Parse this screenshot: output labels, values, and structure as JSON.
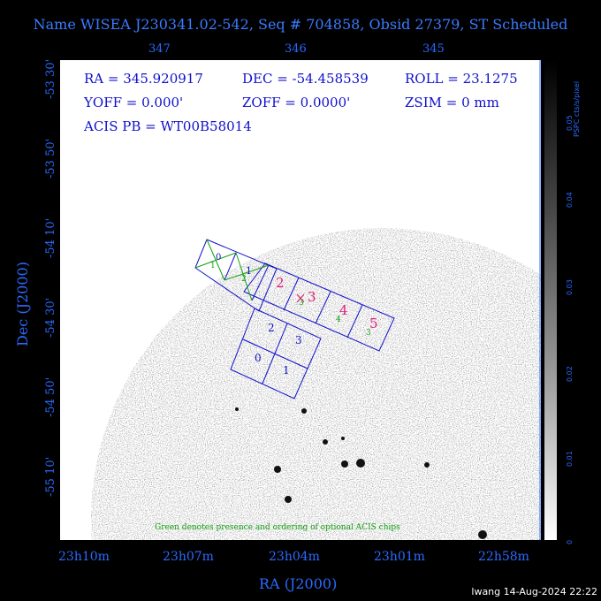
{
  "title": "Name WISEA J230341.02-542, Seq # 704858, Obsid 27379, ST Scheduled",
  "top_ticks": [
    "347",
    "346",
    "345"
  ],
  "bottom_ticks": [
    "23h10m",
    "23h07m",
    "23h04m",
    "23h01m",
    "22h58m"
  ],
  "left_ticks": [
    "-53 30'",
    "-53 50'",
    "-54 10'",
    "-54 30'",
    "-54 50'",
    "-55 10'"
  ],
  "xlabel": "RA (J2000)",
  "ylabel": "Dec (J2000)",
  "info": {
    "ra": "RA = 345.920917",
    "dec": "DEC = -54.458539",
    "roll": "ROLL = 23.1275",
    "yoff": "YOFF =   0.000'",
    "zoff": "ZOFF =  0.0000'",
    "zsim": "ZSIM = 0 mm",
    "acis_pb": "ACIS PB = WT00B58014"
  },
  "chips": {
    "acis_s": [
      "0",
      "1",
      "2",
      "3",
      "4",
      "5"
    ],
    "acis_s_optional": [
      "1",
      "2",
      "3",
      "4",
      "3"
    ],
    "acis_i": [
      "2",
      "3",
      "0",
      "1"
    ]
  },
  "green_note": "Green denotes presence and ordering of optional ACIS chips",
  "colorbar": {
    "label": "PSPC cts/s/pixel",
    "ticks": [
      "0",
      "0.01",
      "0.02",
      "0.03",
      "0.04",
      "0.05"
    ]
  },
  "footer": "lwang 14-Aug-2024 22:22",
  "colors": {
    "axis": "#2a6bff",
    "chip_outline": "#1010cc",
    "optional": "#10a010",
    "acis_s_label": "#e0207a"
  }
}
